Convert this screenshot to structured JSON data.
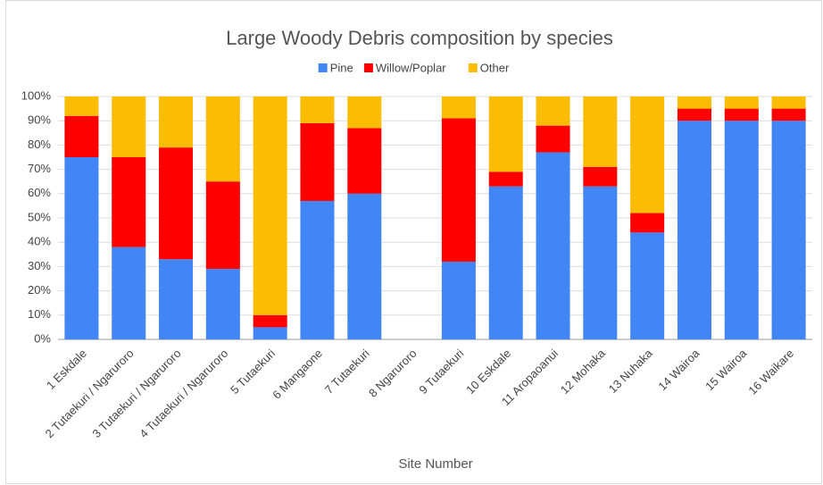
{
  "chart_data": {
    "type": "stacked_bar",
    "title": "Large Woody Debris composition by species",
    "x_label": "Site Number",
    "categories": [
      "1 Eskdale",
      "2 Tutaekuri / Ngaruroro",
      "3 Tutaekuri / Ngaruroro",
      "4 Tutaekuri / Ngaruroro",
      "5 Tutaekuri",
      "6 Mangaone",
      "7 Tutaekuri",
      "8 Ngaruroro",
      "9 Tutaekuri",
      "10 Eskdale",
      "11 Aropaoanui",
      "12 Mohaka",
      "13 Nuhaka",
      "14 Wairoa",
      "15 Wairoa",
      "16 Waikare"
    ],
    "series": [
      {
        "name": "Pine",
        "color": "#4285f4",
        "values": [
          75,
          38,
          33,
          29,
          5,
          57,
          60,
          null,
          32,
          63,
          77,
          63,
          44,
          90,
          90,
          90
        ]
      },
      {
        "name": "Willow/Poplar",
        "color": "#ff0000",
        "values": [
          17,
          37,
          46,
          36,
          5,
          32,
          27,
          null,
          59,
          6,
          11,
          8,
          8,
          5,
          5,
          5
        ]
      },
      {
        "name": "Other",
        "color": "#fbbc04",
        "values": [
          8,
          25,
          21,
          35,
          90,
          11,
          13,
          null,
          9,
          31,
          12,
          29,
          48,
          5,
          5,
          5
        ]
      }
    ],
    "ylim": [
      0,
      100
    ],
    "yticks": [
      {
        "value": 0,
        "label": "0%"
      },
      {
        "value": 10,
        "label": "10%"
      },
      {
        "value": 20,
        "label": "20%"
      },
      {
        "value": 30,
        "label": "30%"
      },
      {
        "value": 40,
        "label": "40%"
      },
      {
        "value": 50,
        "label": "50%"
      },
      {
        "value": 60,
        "label": "60%"
      },
      {
        "value": 70,
        "label": "70%"
      },
      {
        "value": 80,
        "label": "80%"
      },
      {
        "value": 90,
        "label": "90%"
      },
      {
        "value": 100,
        "label": "100%"
      }
    ],
    "grid": true,
    "legend": "top"
  }
}
